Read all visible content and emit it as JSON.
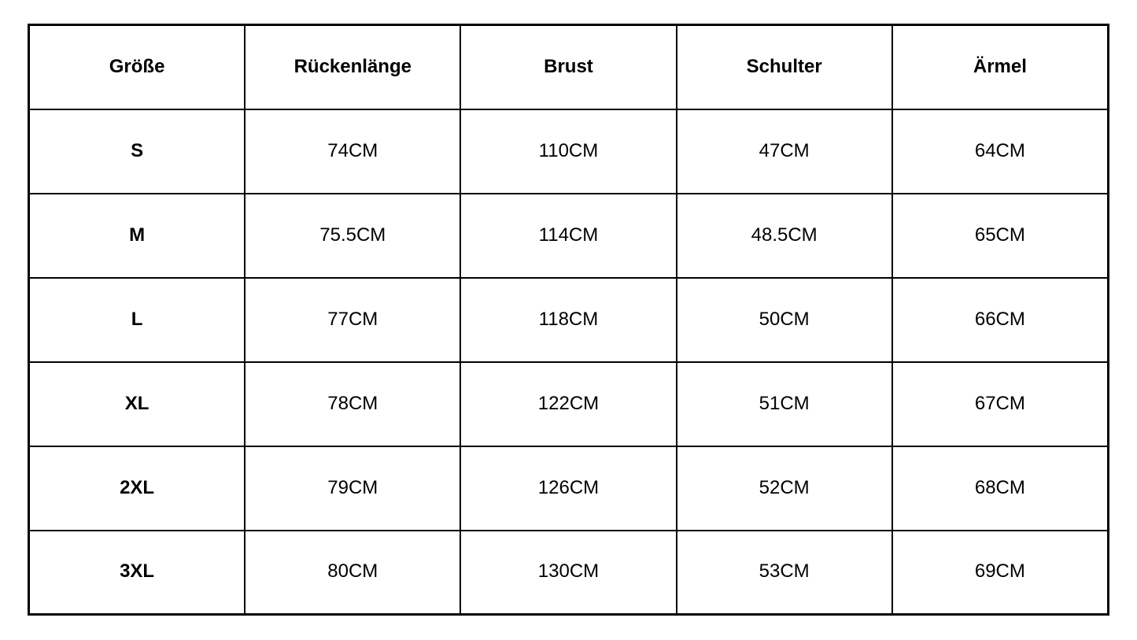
{
  "colors": {
    "background": "#ffffff",
    "border": "#000000",
    "text": "#000000"
  },
  "table": {
    "columns": [
      "Größe",
      "Rückenlänge",
      "Brust",
      "Schulter",
      "Ärmel"
    ],
    "rows": [
      {
        "size": "S",
        "values": [
          "74CM",
          "110CM",
          "47CM",
          "64CM"
        ]
      },
      {
        "size": "M",
        "values": [
          "75.5CM",
          "114CM",
          "48.5CM",
          "65CM"
        ]
      },
      {
        "size": "L",
        "values": [
          "77CM",
          "118CM",
          "50CM",
          "66CM"
        ]
      },
      {
        "size": "XL",
        "values": [
          "78CM",
          "122CM",
          "51CM",
          "67CM"
        ]
      },
      {
        "size": "2XL",
        "values": [
          "79CM",
          "126CM",
          "52CM",
          "68CM"
        ]
      },
      {
        "size": "3XL",
        "values": [
          "80CM",
          "130CM",
          "53CM",
          "69CM"
        ]
      }
    ]
  }
}
